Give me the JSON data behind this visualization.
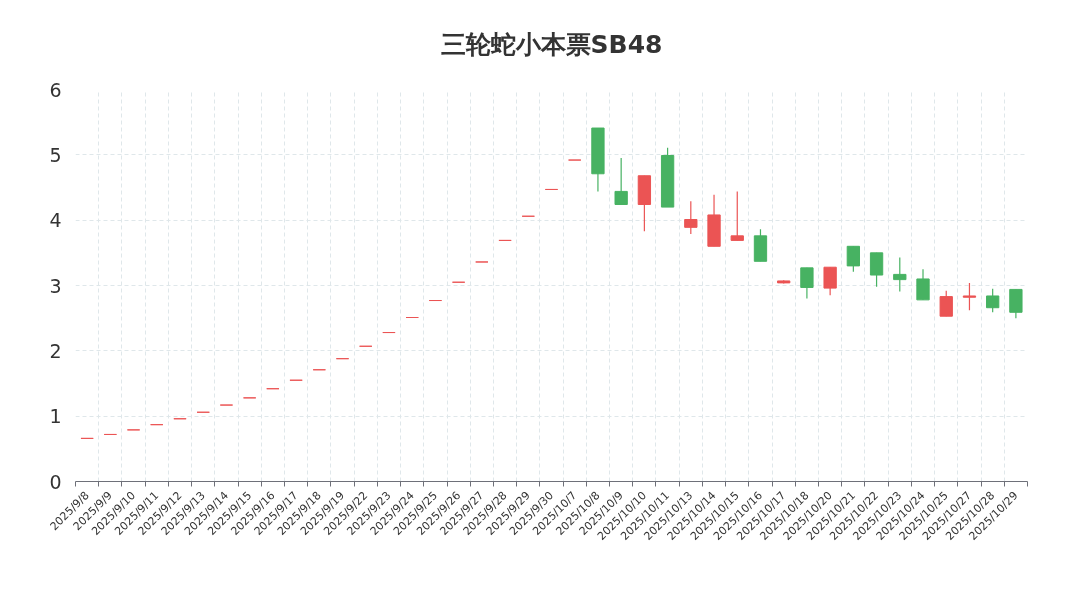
{
  "chart_data": {
    "type": "candlestick",
    "title": "三轮蛇小本票SB48",
    "categories": [
      "2025/9/8",
      "2025/9/9",
      "2025/9/10",
      "2025/9/11",
      "2025/9/12",
      "2025/9/13",
      "2025/9/14",
      "2025/9/15",
      "2025/9/16",
      "2025/9/17",
      "2025/9/18",
      "2025/9/19",
      "2025/9/22",
      "2025/9/23",
      "2025/9/24",
      "2025/9/25",
      "2025/9/26",
      "2025/9/27",
      "2025/9/28",
      "2025/9/29",
      "2025/9/30",
      "2025/10/7",
      "2025/10/8",
      "2025/10/9",
      "2025/10/10",
      "2025/10/11",
      "2025/10/13",
      "2025/10/14",
      "2025/10/15",
      "2025/10/16",
      "2025/10/17",
      "2025/10/18",
      "2025/10/20",
      "2025/10/21",
      "2025/10/22",
      "2025/10/23",
      "2025/10/24",
      "2025/10/25",
      "2025/10/27",
      "2025/10/28",
      "2025/10/29"
    ],
    "ohlc": [
      [
        0.66,
        0.66,
        0.66,
        0.66
      ],
      [
        0.72,
        0.72,
        0.72,
        0.72
      ],
      [
        0.79,
        0.79,
        0.79,
        0.79
      ],
      [
        0.87,
        0.87,
        0.87,
        0.87
      ],
      [
        0.96,
        0.96,
        0.96,
        0.96
      ],
      [
        1.06,
        1.06,
        1.06,
        1.06
      ],
      [
        1.17,
        1.17,
        1.17,
        1.17
      ],
      [
        1.28,
        1.28,
        1.28,
        1.28
      ],
      [
        1.42,
        1.42,
        1.42,
        1.42
      ],
      [
        1.55,
        1.55,
        1.55,
        1.55
      ],
      [
        1.71,
        1.71,
        1.71,
        1.71
      ],
      [
        1.88,
        1.88,
        1.88,
        1.88
      ],
      [
        2.07,
        2.07,
        2.07,
        2.07
      ],
      [
        2.28,
        2.28,
        2.28,
        2.28
      ],
      [
        2.51,
        2.51,
        2.51,
        2.51
      ],
      [
        2.77,
        2.77,
        2.77,
        2.77
      ],
      [
        3.05,
        3.05,
        3.05,
        3.05
      ],
      [
        3.36,
        3.36,
        3.36,
        3.36
      ],
      [
        3.69,
        3.69,
        3.69,
        3.69
      ],
      [
        4.06,
        4.06,
        4.06,
        4.06
      ],
      [
        4.47,
        4.47,
        4.47,
        4.47
      ],
      [
        4.92,
        4.92,
        4.92,
        4.92
      ],
      [
        5.41,
        5.41,
        4.44,
        4.71
      ],
      [
        4.44,
        4.95,
        4.24,
        4.24
      ],
      [
        4.24,
        4.68,
        3.83,
        4.68
      ],
      [
        4.99,
        5.11,
        4.2,
        4.2
      ],
      [
        3.89,
        4.29,
        3.79,
        4.01
      ],
      [
        3.6,
        4.39,
        3.6,
        4.08
      ],
      [
        3.69,
        4.44,
        3.69,
        3.76
      ],
      [
        3.76,
        3.86,
        3.37,
        3.37
      ],
      [
        3.04,
        3.08,
        3.03,
        3.07
      ],
      [
        3.27,
        3.27,
        2.8,
        2.97
      ],
      [
        2.96,
        3.28,
        2.85,
        3.28
      ],
      [
        3.6,
        3.6,
        3.21,
        3.3
      ],
      [
        3.5,
        3.5,
        2.98,
        3.16
      ],
      [
        3.17,
        3.43,
        2.91,
        3.09
      ],
      [
        3.1,
        3.25,
        2.78,
        2.78
      ],
      [
        2.53,
        2.92,
        2.53,
        2.83
      ],
      [
        2.82,
        3.04,
        2.62,
        2.84
      ],
      [
        2.84,
        2.95,
        2.59,
        2.66
      ],
      [
        2.94,
        2.94,
        2.5,
        2.59
      ]
    ],
    "colors": [
      "#eb5454",
      "#eb5454",
      "#eb5454",
      "#eb5454",
      "#eb5454",
      "#eb5454",
      "#eb5454",
      "#eb5454",
      "#eb5454",
      "#eb5454",
      "#eb5454",
      "#eb5454",
      "#eb5454",
      "#eb5454",
      "#eb5454",
      "#eb5454",
      "#eb5454",
      "#eb5454",
      "#eb5454",
      "#eb5454",
      "#eb5454",
      "#eb5454",
      "#47b262",
      "#47b262",
      "#eb5454",
      "#47b262",
      "#eb5454",
      "#eb5454",
      "#eb5454",
      "#47b262",
      "#eb5454",
      "#47b262",
      "#eb5454",
      "#47b262",
      "#47b262",
      "#47b262",
      "#47b262",
      "#eb5454",
      "#eb5454",
      "#47b262",
      "#47b262"
    ],
    "ylim": [
      0,
      6
    ],
    "yticks": [
      0,
      1,
      2,
      3,
      4,
      5,
      6
    ],
    "grid": true
  }
}
